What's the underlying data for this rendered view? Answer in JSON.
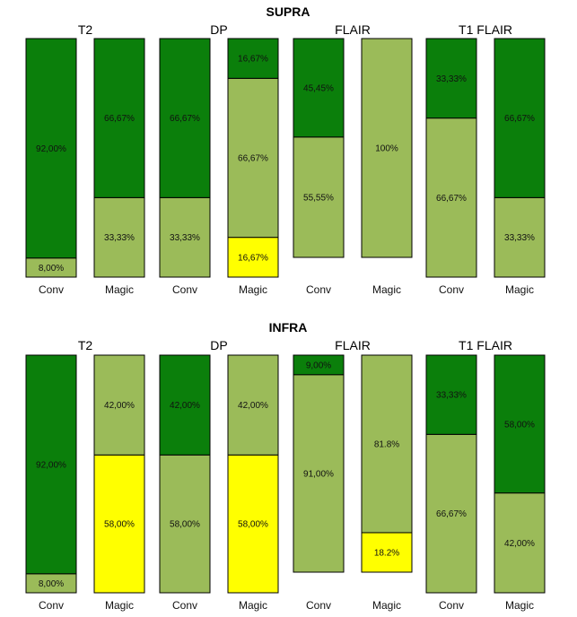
{
  "colors": {
    "dark_green": "#0b7f0b",
    "light_green": "#9bbb59",
    "yellow": "#ffff00",
    "border": "#000000"
  },
  "chart_data": [
    {
      "type": "bar",
      "section": "SUPRA",
      "title": "T2",
      "categories": [
        "Conv",
        "Magic"
      ],
      "bars": [
        {
          "category": "Conv",
          "segments": [
            {
              "label": "8,00%",
              "value": 8,
              "color": "light_green"
            },
            {
              "label": "92,00%",
              "value": 92,
              "color": "dark_green"
            }
          ]
        },
        {
          "category": "Magic",
          "segments": [
            {
              "label": "33,33%",
              "value": 33.33,
              "color": "light_green"
            },
            {
              "label": "66,67%",
              "value": 66.67,
              "color": "dark_green"
            }
          ]
        }
      ]
    },
    {
      "type": "bar",
      "section": "SUPRA",
      "title": "DP",
      "categories": [
        "Conv",
        "Magic"
      ],
      "bars": [
        {
          "category": "Conv",
          "segments": [
            {
              "label": "33,33%",
              "value": 33.33,
              "color": "light_green"
            },
            {
              "label": "66,67%",
              "value": 66.67,
              "color": "dark_green"
            }
          ]
        },
        {
          "category": "Magic",
          "segments": [
            {
              "label": "16,67%",
              "value": 16.67,
              "color": "yellow"
            },
            {
              "label": "66,67%",
              "value": 66.67,
              "color": "light_green"
            },
            {
              "label": "16,67%",
              "value": 16.67,
              "color": "dark_green"
            }
          ]
        }
      ]
    },
    {
      "type": "bar",
      "section": "SUPRA",
      "title": "FLAIR",
      "categories": [
        "Conv",
        "Magic"
      ],
      "bars": [
        {
          "category": "Conv",
          "segments": [
            {
              "label": "55,55%",
              "value": 55.55,
              "color": "light_green"
            },
            {
              "label": "45,45%",
              "value": 45.45,
              "color": "dark_green"
            }
          ]
        },
        {
          "category": "Magic",
          "segments": [
            {
              "label": "100%",
              "value": 100,
              "color": "light_green"
            }
          ]
        }
      ]
    },
    {
      "type": "bar",
      "section": "SUPRA",
      "title": "T1 FLAIR",
      "categories": [
        "Conv",
        "Magic"
      ],
      "bars": [
        {
          "category": "Conv",
          "segments": [
            {
              "label": "66,67%",
              "value": 66.67,
              "color": "light_green"
            },
            {
              "label": "33,33%",
              "value": 33.33,
              "color": "dark_green"
            }
          ]
        },
        {
          "category": "Magic",
          "segments": [
            {
              "label": "33,33%",
              "value": 33.33,
              "color": "light_green"
            },
            {
              "label": "66,67%",
              "value": 66.67,
              "color": "dark_green"
            }
          ]
        }
      ]
    },
    {
      "type": "bar",
      "section": "INFRA",
      "title": "T2",
      "categories": [
        "Conv",
        "Magic"
      ],
      "bars": [
        {
          "category": "Conv",
          "segments": [
            {
              "label": "8,00%",
              "value": 8,
              "color": "light_green"
            },
            {
              "label": "92,00%",
              "value": 92,
              "color": "dark_green"
            }
          ]
        },
        {
          "category": "Magic",
          "segments": [
            {
              "label": "58,00%",
              "value": 58,
              "color": "yellow"
            },
            {
              "label": "42,00%",
              "value": 42,
              "color": "light_green"
            }
          ]
        }
      ]
    },
    {
      "type": "bar",
      "section": "INFRA",
      "title": "DP",
      "categories": [
        "Conv",
        "Magic"
      ],
      "bars": [
        {
          "category": "Conv",
          "segments": [
            {
              "label": "58,00%",
              "value": 58,
              "color": "light_green"
            },
            {
              "label": "42,00%",
              "value": 42,
              "color": "dark_green"
            }
          ]
        },
        {
          "category": "Magic",
          "segments": [
            {
              "label": "58,00%",
              "value": 58,
              "color": "yellow"
            },
            {
              "label": "42,00%",
              "value": 42,
              "color": "light_green"
            }
          ]
        }
      ]
    },
    {
      "type": "bar",
      "section": "INFRA",
      "title": "FLAIR",
      "categories": [
        "Conv",
        "Magic"
      ],
      "bars": [
        {
          "category": "Conv",
          "segments": [
            {
              "label": "91,00%",
              "value": 91,
              "color": "light_green"
            },
            {
              "label": "9,00%",
              "value": 9,
              "color": "dark_green"
            }
          ]
        },
        {
          "category": "Magic",
          "segments": [
            {
              "label": "18.2%",
              "value": 18.2,
              "color": "yellow"
            },
            {
              "label": "81.8%",
              "value": 81.8,
              "color": "light_green"
            }
          ]
        }
      ]
    },
    {
      "type": "bar",
      "section": "INFRA",
      "title": "T1 FLAIR",
      "categories": [
        "Conv",
        "Magic"
      ],
      "bars": [
        {
          "category": "Conv",
          "segments": [
            {
              "label": "66,67%",
              "value": 66.67,
              "color": "light_green"
            },
            {
              "label": "33,33%",
              "value": 33.33,
              "color": "dark_green"
            }
          ]
        },
        {
          "category": "Magic",
          "segments": [
            {
              "label": "42,00%",
              "value": 42,
              "color": "light_green"
            },
            {
              "label": "58,00%",
              "value": 58,
              "color": "dark_green"
            }
          ]
        }
      ]
    }
  ]
}
